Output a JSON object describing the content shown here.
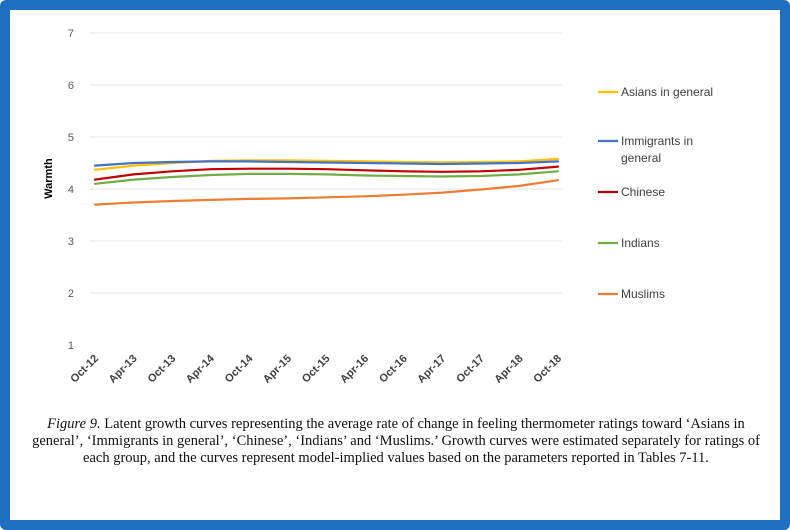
{
  "chart_data": {
    "type": "line",
    "ylabel": "Warmth",
    "ylim": [
      1,
      7
    ],
    "yticks": [
      1,
      2,
      3,
      4,
      5,
      6,
      7
    ],
    "categories": [
      "Oct-12",
      "Apr-13",
      "Oct-13",
      "Apr-14",
      "Oct-14",
      "Apr-15",
      "Oct-15",
      "Apr-16",
      "Oct-16",
      "Apr-17",
      "Oct-17",
      "Apr-18",
      "Oct-18"
    ],
    "grid": true,
    "legend": "right",
    "series": [
      {
        "name": "Asians in general",
        "color": "#ffc000",
        "values": [
          4.37,
          4.45,
          4.5,
          4.54,
          4.55,
          4.55,
          4.54,
          4.53,
          4.52,
          4.51,
          4.52,
          4.53,
          4.58
        ]
      },
      {
        "name": "Immigrants in general",
        "color": "#4472c4",
        "values": [
          4.45,
          4.5,
          4.52,
          4.53,
          4.53,
          4.52,
          4.51,
          4.5,
          4.49,
          4.48,
          4.49,
          4.5,
          4.53
        ]
      },
      {
        "name": "Chinese",
        "color": "#c00000",
        "values": [
          4.18,
          4.28,
          4.34,
          4.38,
          4.39,
          4.39,
          4.38,
          4.36,
          4.34,
          4.33,
          4.34,
          4.37,
          4.43
        ]
      },
      {
        "name": "Indians",
        "color": "#70ad47",
        "values": [
          4.1,
          4.18,
          4.23,
          4.27,
          4.29,
          4.29,
          4.28,
          4.26,
          4.25,
          4.24,
          4.25,
          4.28,
          4.34
        ]
      },
      {
        "name": "Muslims",
        "color": "#ed7d31",
        "values": [
          3.7,
          3.74,
          3.77,
          3.79,
          3.81,
          3.82,
          3.84,
          3.86,
          3.89,
          3.93,
          3.99,
          4.06,
          4.17
        ]
      }
    ],
    "legend_lines": [
      [
        "Asians in general"
      ],
      [
        "Immigrants in",
        "general"
      ],
      [
        "Chinese"
      ],
      [
        "Indians"
      ],
      [
        "Muslims"
      ]
    ]
  },
  "caption": {
    "figure_label": "Figure 9.",
    "text": " Latent growth curves representing the average rate of change in feeling thermometer ratings toward ‘Asians in general’, ‘Immigrants in general’, ‘Chinese’, ‘Indians’ and ‘Muslims.’ Growth curves were estimated separately for ratings of each group, and the curves represent model-implied values based on the parameters reported in Tables 7-11."
  }
}
